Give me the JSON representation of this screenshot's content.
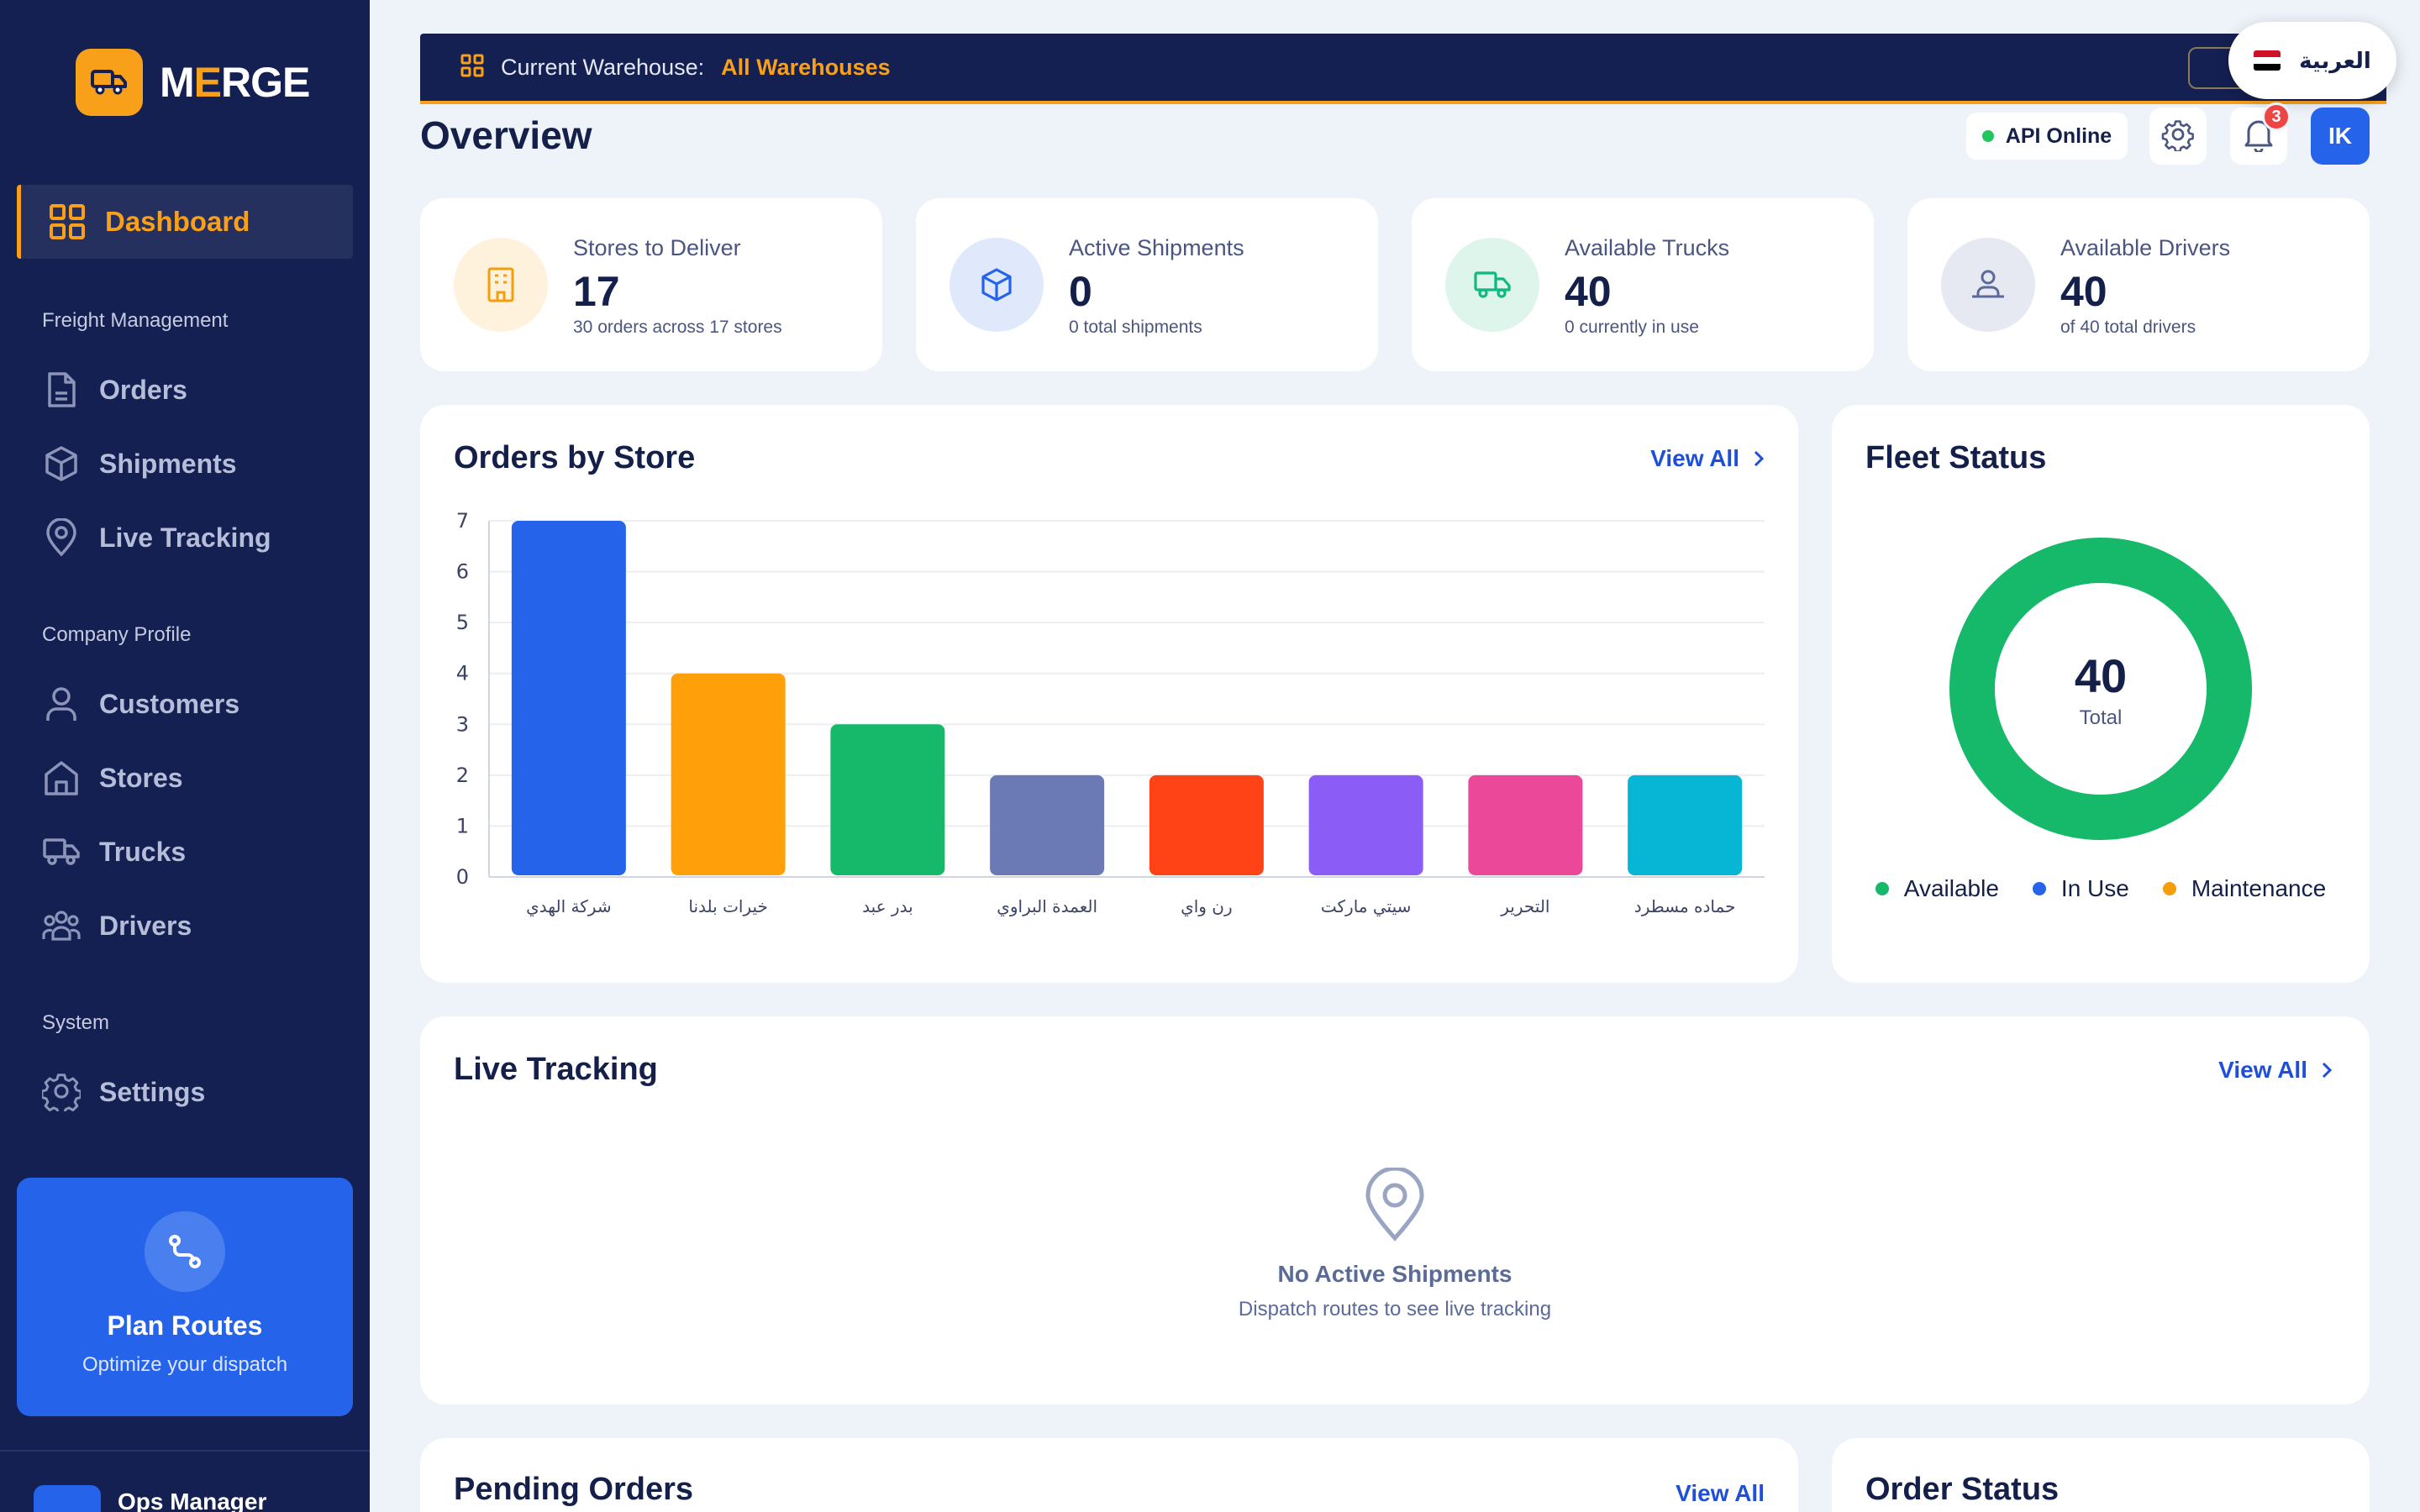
{
  "brand": {
    "name_prefix": "M",
    "name_accent": "E",
    "name_suffix": "RGE"
  },
  "sidebar": {
    "active": {
      "label": "Dashboard"
    },
    "sections": [
      {
        "title": "Freight Management",
        "items": [
          {
            "label": "Orders",
            "icon": "document-icon"
          },
          {
            "label": "Shipments",
            "icon": "box-icon"
          },
          {
            "label": "Live Tracking",
            "icon": "map-pin-icon"
          }
        ]
      },
      {
        "title": "Company Profile",
        "items": [
          {
            "label": "Customers",
            "icon": "user-icon"
          },
          {
            "label": "Stores",
            "icon": "home-icon"
          },
          {
            "label": "Trucks",
            "icon": "truck-icon"
          },
          {
            "label": "Drivers",
            "icon": "users-icon"
          }
        ]
      },
      {
        "title": "System",
        "items": [
          {
            "label": "Settings",
            "icon": "gear-icon"
          }
        ]
      }
    ],
    "plan_card": {
      "title": "Plan Routes",
      "subtitle": "Optimize your dispatch"
    },
    "user": {
      "role": "Ops Manager"
    }
  },
  "header": {
    "warehouse_label": "Current Warehouse:",
    "warehouse_value": "All Warehouses",
    "language": "العربية",
    "page_title": "Overview",
    "api_status": "API Online",
    "notifications_count": "3",
    "user_initials": "IK"
  },
  "stats": [
    {
      "label": "Stores to Deliver",
      "value": "17",
      "sub": "30 orders across 17 stores",
      "icon": "building-icon",
      "color": "#f59e0b"
    },
    {
      "label": "Active Shipments",
      "value": "0",
      "sub": "0 total shipments",
      "icon": "box-icon",
      "color": "#2563eb"
    },
    {
      "label": "Available Trucks",
      "value": "40",
      "sub": "0 currently in use",
      "icon": "truck-icon",
      "color": "#10b981"
    },
    {
      "label": "Available Drivers",
      "value": "40",
      "sub": "of 40 total drivers",
      "icon": "users-icon",
      "color": "#5a6b99"
    }
  ],
  "orders_by_store": {
    "title": "Orders by Store",
    "view_all": "View All"
  },
  "chart_data": {
    "type": "bar",
    "categories": [
      "شركة الهدي",
      "خيرات بلدنا",
      "بدر عبد",
      "العمدة البراوي",
      "رن واي",
      "سيتي ماركت",
      "التحرير",
      "حماده مسطرد"
    ],
    "values": [
      7,
      4,
      3,
      2,
      2,
      2,
      2,
      2
    ],
    "colors": [
      "#2563eb",
      "#ff9f0a",
      "#16b86a",
      "#6b7ab5",
      "#ff4317",
      "#8b5cf6",
      "#ec4899",
      "#06b6d4"
    ],
    "ylim": [
      0,
      7
    ],
    "yticks": [
      "0",
      "1",
      "2",
      "3",
      "4",
      "5",
      "6",
      "7"
    ],
    "grid": true
  },
  "fleet_status": {
    "title": "Fleet Status",
    "total": "40",
    "total_label": "Total",
    "legend": [
      {
        "label": "Available",
        "color": "#16b86a"
      },
      {
        "label": "In Use",
        "color": "#2563eb"
      },
      {
        "label": "Maintenance",
        "color": "#f59e0b"
      }
    ]
  },
  "live_tracking": {
    "title": "Live Tracking",
    "view_all": "View All",
    "empty_title": "No Active Shipments",
    "empty_sub": "Dispatch routes to see live tracking"
  },
  "pending_orders": {
    "title": "Pending Orders",
    "view_all": "View All"
  },
  "order_status": {
    "title": "Order Status"
  }
}
